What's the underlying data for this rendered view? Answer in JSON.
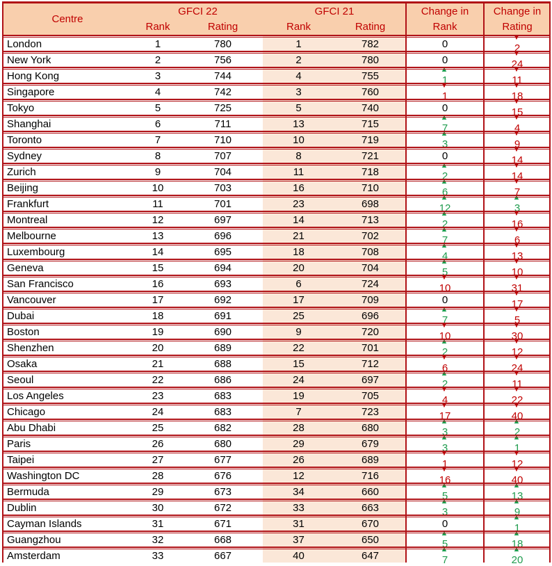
{
  "header": {
    "centre": "Centre",
    "gfci22": "GFCI 22",
    "gfci21": "GFCI 21",
    "rank": "Rank",
    "rating": "Rating",
    "change_line1": "Change in",
    "change_rank_line2": "Rank",
    "change_rating_line2": "Rating"
  },
  "icons": {
    "up_arrow": "▲",
    "down_arrow": "▼"
  },
  "colors": {
    "header_bg": "#F9CFAD",
    "band_bg": "#FBE7D8",
    "border_red": "#B01116",
    "header_text": "#C00000",
    "up_green": "#1E9B4D",
    "down_red": "#C00000"
  },
  "rows": [
    {
      "centre": "London",
      "gfci22_rank": 1,
      "gfci22_rating": 780,
      "gfci21_rank": 1,
      "gfci21_rating": 782,
      "change_rank": 0,
      "change_rating": -2
    },
    {
      "centre": "New York",
      "gfci22_rank": 2,
      "gfci22_rating": 756,
      "gfci21_rank": 2,
      "gfci21_rating": 780,
      "change_rank": 0,
      "change_rating": -24
    },
    {
      "centre": "Hong Kong",
      "gfci22_rank": 3,
      "gfci22_rating": 744,
      "gfci21_rank": 4,
      "gfci21_rating": 755,
      "change_rank": 1,
      "change_rating": -11
    },
    {
      "centre": "Singapore",
      "gfci22_rank": 4,
      "gfci22_rating": 742,
      "gfci21_rank": 3,
      "gfci21_rating": 760,
      "change_rank": -1,
      "change_rating": -18
    },
    {
      "centre": "Tokyo",
      "gfci22_rank": 5,
      "gfci22_rating": 725,
      "gfci21_rank": 5,
      "gfci21_rating": 740,
      "change_rank": 0,
      "change_rating": -15
    },
    {
      "centre": "Shanghai",
      "gfci22_rank": 6,
      "gfci22_rating": 711,
      "gfci21_rank": 13,
      "gfci21_rating": 715,
      "change_rank": 7,
      "change_rating": -4
    },
    {
      "centre": "Toronto",
      "gfci22_rank": 7,
      "gfci22_rating": 710,
      "gfci21_rank": 10,
      "gfci21_rating": 719,
      "change_rank": 3,
      "change_rating": -9
    },
    {
      "centre": "Sydney",
      "gfci22_rank": 8,
      "gfci22_rating": 707,
      "gfci21_rank": 8,
      "gfci21_rating": 721,
      "change_rank": 0,
      "change_rating": -14
    },
    {
      "centre": "Zurich",
      "gfci22_rank": 9,
      "gfci22_rating": 704,
      "gfci21_rank": 11,
      "gfci21_rating": 718,
      "change_rank": 2,
      "change_rating": -14
    },
    {
      "centre": "Beijing",
      "gfci22_rank": 10,
      "gfci22_rating": 703,
      "gfci21_rank": 16,
      "gfci21_rating": 710,
      "change_rank": 6,
      "change_rating": -7
    },
    {
      "centre": "Frankfurt",
      "gfci22_rank": 11,
      "gfci22_rating": 701,
      "gfci21_rank": 23,
      "gfci21_rating": 698,
      "change_rank": 12,
      "change_rating": 3
    },
    {
      "centre": "Montreal",
      "gfci22_rank": 12,
      "gfci22_rating": 697,
      "gfci21_rank": 14,
      "gfci21_rating": 713,
      "change_rank": 2,
      "change_rating": -16
    },
    {
      "centre": "Melbourne",
      "gfci22_rank": 13,
      "gfci22_rating": 696,
      "gfci21_rank": 21,
      "gfci21_rating": 702,
      "change_rank": 7,
      "change_rating": -6
    },
    {
      "centre": "Luxembourg",
      "gfci22_rank": 14,
      "gfci22_rating": 695,
      "gfci21_rank": 18,
      "gfci21_rating": 708,
      "change_rank": 4,
      "change_rating": -13
    },
    {
      "centre": "Geneva",
      "gfci22_rank": 15,
      "gfci22_rating": 694,
      "gfci21_rank": 20,
      "gfci21_rating": 704,
      "change_rank": 5,
      "change_rating": -10
    },
    {
      "centre": "San Francisco",
      "gfci22_rank": 16,
      "gfci22_rating": 693,
      "gfci21_rank": 6,
      "gfci21_rating": 724,
      "change_rank": -10,
      "change_rating": -31
    },
    {
      "centre": "Vancouver",
      "gfci22_rank": 17,
      "gfci22_rating": 692,
      "gfci21_rank": 17,
      "gfci21_rating": 709,
      "change_rank": 0,
      "change_rating": -17
    },
    {
      "centre": "Dubai",
      "gfci22_rank": 18,
      "gfci22_rating": 691,
      "gfci21_rank": 25,
      "gfci21_rating": 696,
      "change_rank": 7,
      "change_rating": -5
    },
    {
      "centre": "Boston",
      "gfci22_rank": 19,
      "gfci22_rating": 690,
      "gfci21_rank": 9,
      "gfci21_rating": 720,
      "change_rank": -10,
      "change_rating": -30
    },
    {
      "centre": "Shenzhen",
      "gfci22_rank": 20,
      "gfci22_rating": 689,
      "gfci21_rank": 22,
      "gfci21_rating": 701,
      "change_rank": 2,
      "change_rating": -12
    },
    {
      "centre": "Osaka",
      "gfci22_rank": 21,
      "gfci22_rating": 688,
      "gfci21_rank": 15,
      "gfci21_rating": 712,
      "change_rank": -6,
      "change_rating": -24
    },
    {
      "centre": "Seoul",
      "gfci22_rank": 22,
      "gfci22_rating": 686,
      "gfci21_rank": 24,
      "gfci21_rating": 697,
      "change_rank": 2,
      "change_rating": -11
    },
    {
      "centre": "Los Angeles",
      "gfci22_rank": 23,
      "gfci22_rating": 683,
      "gfci21_rank": 19,
      "gfci21_rating": 705,
      "change_rank": -4,
      "change_rating": -22
    },
    {
      "centre": "Chicago",
      "gfci22_rank": 24,
      "gfci22_rating": 683,
      "gfci21_rank": 7,
      "gfci21_rating": 723,
      "change_rank": -17,
      "change_rating": -40
    },
    {
      "centre": "Abu Dhabi",
      "gfci22_rank": 25,
      "gfci22_rating": 682,
      "gfci21_rank": 28,
      "gfci21_rating": 680,
      "change_rank": 3,
      "change_rating": 2
    },
    {
      "centre": "Paris",
      "gfci22_rank": 26,
      "gfci22_rating": 680,
      "gfci21_rank": 29,
      "gfci21_rating": 679,
      "change_rank": 3,
      "change_rating": 1
    },
    {
      "centre": "Taipei",
      "gfci22_rank": 27,
      "gfci22_rating": 677,
      "gfci21_rank": 26,
      "gfci21_rating": 689,
      "change_rank": -1,
      "change_rating": -12
    },
    {
      "centre": "Washington DC",
      "gfci22_rank": 28,
      "gfci22_rating": 676,
      "gfci21_rank": 12,
      "gfci21_rating": 716,
      "change_rank": -16,
      "change_rating": -40
    },
    {
      "centre": "Bermuda",
      "gfci22_rank": 29,
      "gfci22_rating": 673,
      "gfci21_rank": 34,
      "gfci21_rating": 660,
      "change_rank": 5,
      "change_rating": 13
    },
    {
      "centre": "Dublin",
      "gfci22_rank": 30,
      "gfci22_rating": 672,
      "gfci21_rank": 33,
      "gfci21_rating": 663,
      "change_rank": 3,
      "change_rating": 9
    },
    {
      "centre": "Cayman Islands",
      "gfci22_rank": 31,
      "gfci22_rating": 671,
      "gfci21_rank": 31,
      "gfci21_rating": 670,
      "change_rank": 0,
      "change_rating": 1
    },
    {
      "centre": "Guangzhou",
      "gfci22_rank": 32,
      "gfci22_rating": 668,
      "gfci21_rank": 37,
      "gfci21_rating": 650,
      "change_rank": 5,
      "change_rating": 18
    },
    {
      "centre": "Amsterdam",
      "gfci22_rank": 33,
      "gfci22_rating": 667,
      "gfci21_rank": 40,
      "gfci21_rating": 647,
      "change_rank": 7,
      "change_rating": 20
    }
  ]
}
